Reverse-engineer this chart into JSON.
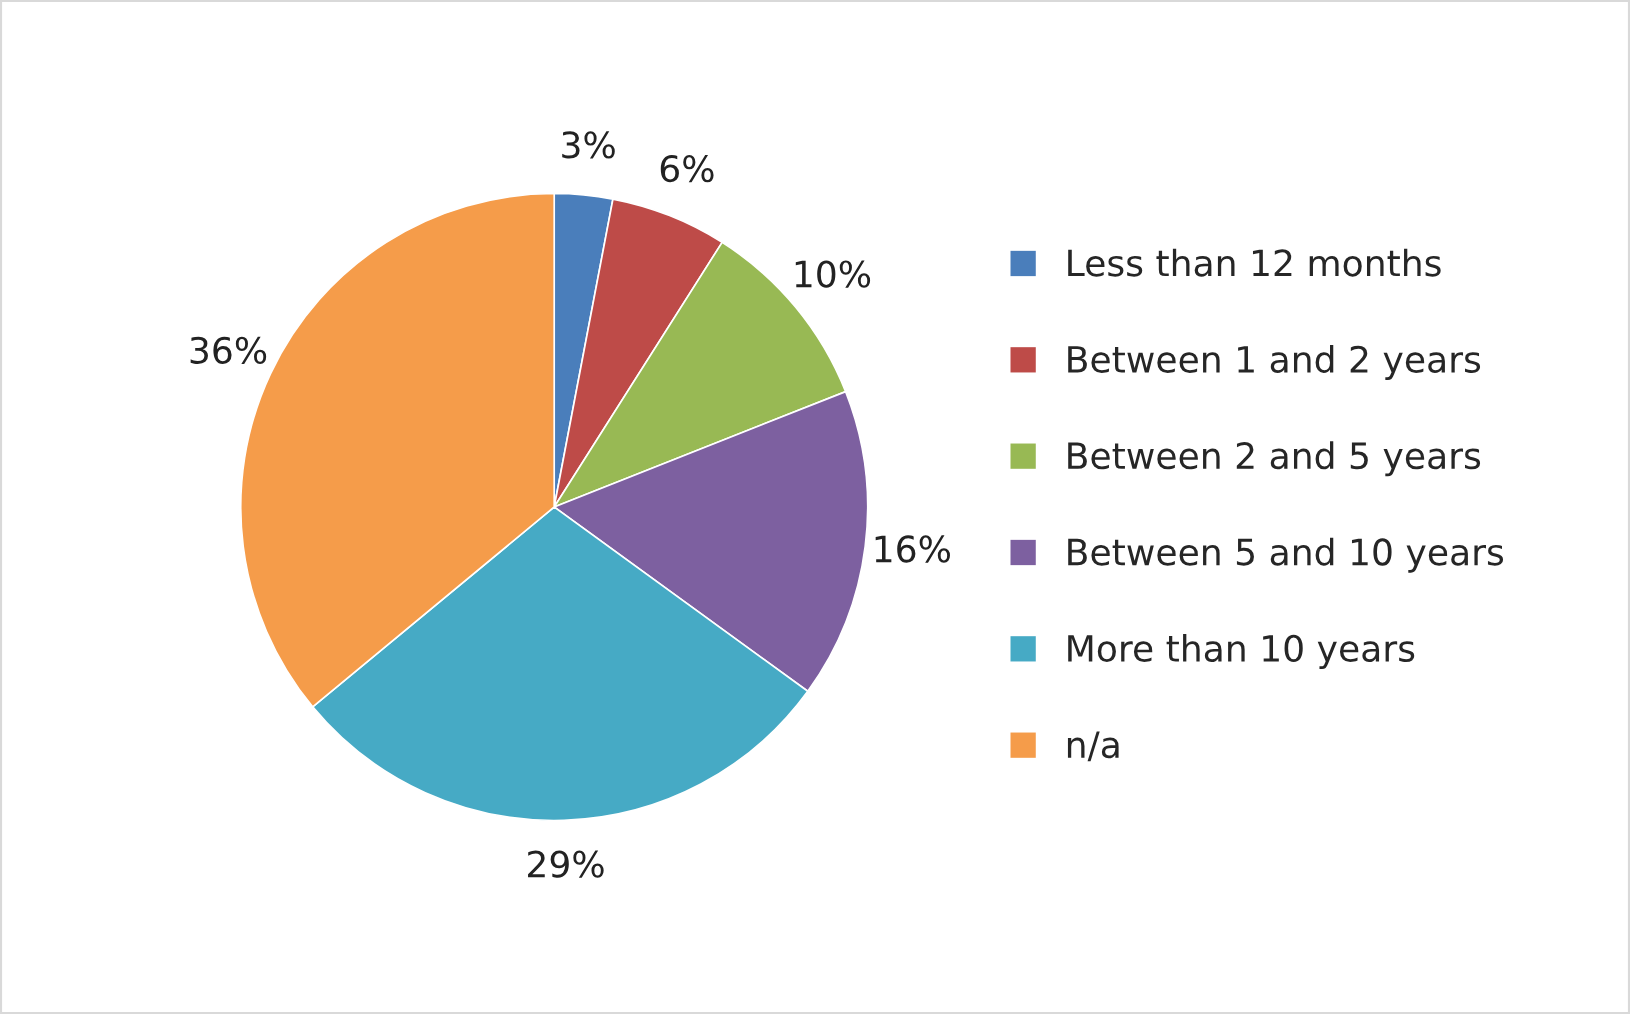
{
  "chart_data": {
    "type": "pie",
    "categories": [
      "Less than 12 months",
      "Between 1 and 2 years",
      "Between 2 and 5 years",
      "Between 5 and 10 years",
      "More than 10 years",
      "n/a"
    ],
    "values": [
      3,
      6,
      10,
      16,
      29,
      36
    ],
    "colors": [
      "#4a7ebb",
      "#be4b48",
      "#98b954",
      "#7d60a0",
      "#46aac5",
      "#f59c4a"
    ],
    "value_labels": [
      "3%",
      "6%",
      "10%",
      "16%",
      "29%",
      "36%"
    ],
    "legend": "right"
  }
}
